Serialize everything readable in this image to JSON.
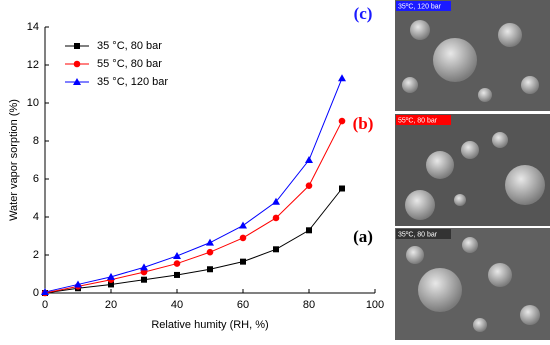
{
  "chart_data": {
    "type": "line",
    "xlabel": "Relative humity (RH, %)",
    "ylabel": "Water vapor sorption (%)",
    "x": [
      0,
      10,
      20,
      30,
      40,
      50,
      60,
      70,
      80,
      90
    ],
    "series": [
      {
        "name": "35 °C, 80 bar",
        "color": "#000000",
        "marker": "square",
        "values": [
          0,
          0.25,
          0.45,
          0.7,
          0.95,
          1.25,
          1.65,
          2.3,
          3.3,
          5.5
        ]
      },
      {
        "name": "55 °C, 80 bar",
        "color": "#ff0000",
        "marker": "circle",
        "values": [
          0,
          0.35,
          0.7,
          1.1,
          1.55,
          2.15,
          2.9,
          3.95,
          5.65,
          9.05
        ]
      },
      {
        "name": "35 °C, 120 bar",
        "color": "#0000ff",
        "marker": "triangle",
        "values": [
          0.05,
          0.45,
          0.85,
          1.35,
          1.95,
          2.65,
          3.55,
          4.8,
          7.0,
          11.3
        ]
      }
    ],
    "xlim": [
      0,
      100
    ],
    "xticks": [
      0,
      20,
      40,
      60,
      80,
      100
    ],
    "ylim": [
      0,
      14
    ],
    "yticks": [
      0,
      2,
      4,
      6,
      8,
      10,
      12,
      14
    ],
    "legend": "upper left"
  },
  "panels": [
    {
      "letter": "(c)",
      "color": "#1a1aff",
      "image_label": "35ºC, 120 bar",
      "label_bg": "#1a1aff"
    },
    {
      "letter": "(b)",
      "color": "#ff0000",
      "image_label": "55ºC, 80 bar",
      "label_bg": "#ff0000"
    },
    {
      "letter": "(a)",
      "color": "#000000",
      "image_label": "35ºC, 80 bar",
      "label_bg": "#333333"
    }
  ]
}
